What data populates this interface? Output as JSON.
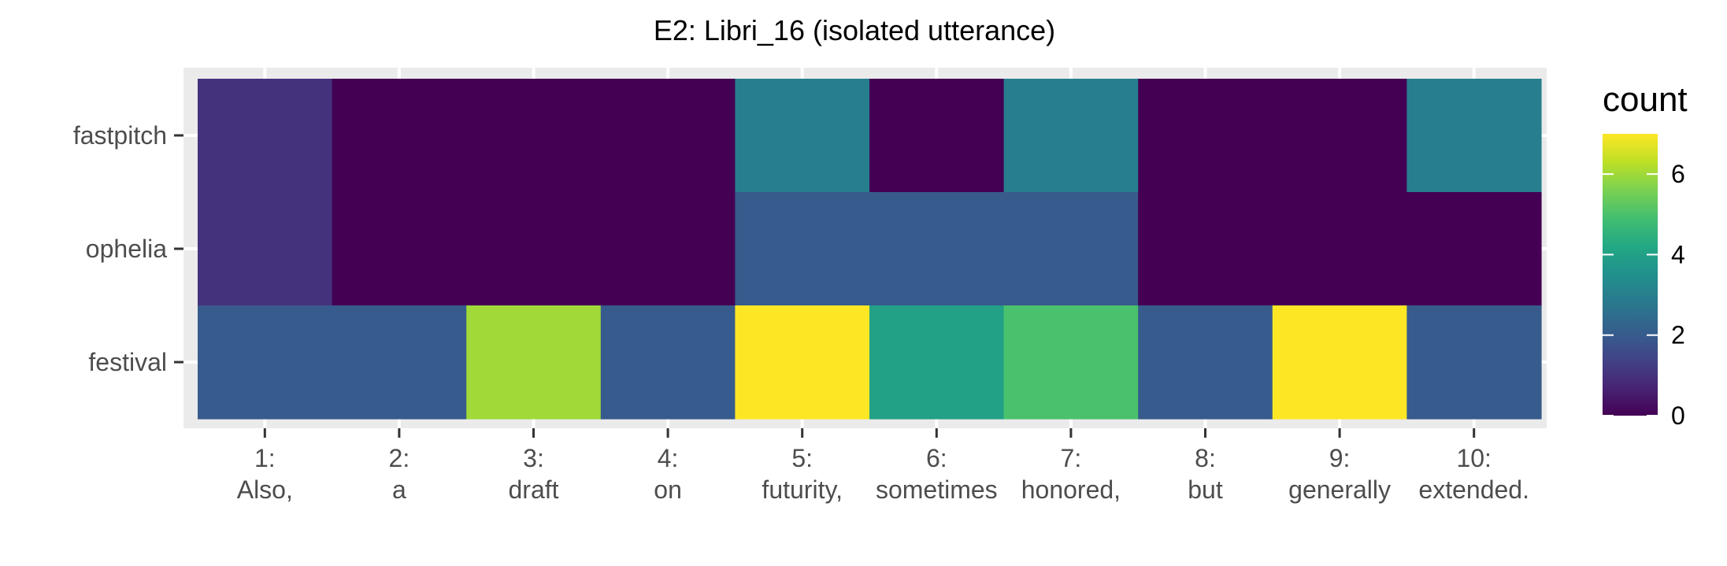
{
  "chart_data": {
    "type": "heatmap",
    "title": "E2: Libri_16 (isolated utterance)",
    "xlabel": "",
    "ylabel": "",
    "x_categories": [
      [
        "1:",
        "Also,"
      ],
      [
        "2:",
        "a"
      ],
      [
        "3:",
        "draft"
      ],
      [
        "4:",
        "on"
      ],
      [
        "5:",
        "futurity,"
      ],
      [
        "6:",
        "sometimes"
      ],
      [
        "7:",
        "honored,"
      ],
      [
        "8:",
        "but"
      ],
      [
        "9:",
        "generally"
      ],
      [
        "10:",
        "extended."
      ]
    ],
    "y_categories": [
      "fastpitch",
      "ophelia",
      "festival"
    ],
    "values": [
      [
        1,
        0,
        0,
        0,
        3,
        0,
        3,
        0,
        0,
        3
      ],
      [
        1,
        0,
        0,
        0,
        2,
        2,
        2,
        0,
        0,
        0
      ],
      [
        2,
        2,
        6,
        2,
        7,
        4,
        5,
        2,
        7,
        2
      ]
    ],
    "legend": {
      "title": "count",
      "breaks": [
        0,
        2,
        4,
        6
      ],
      "limits": [
        0,
        7
      ],
      "position": "right"
    },
    "colormap": "viridis",
    "panel_background": "#ebebeb",
    "grid": true
  }
}
